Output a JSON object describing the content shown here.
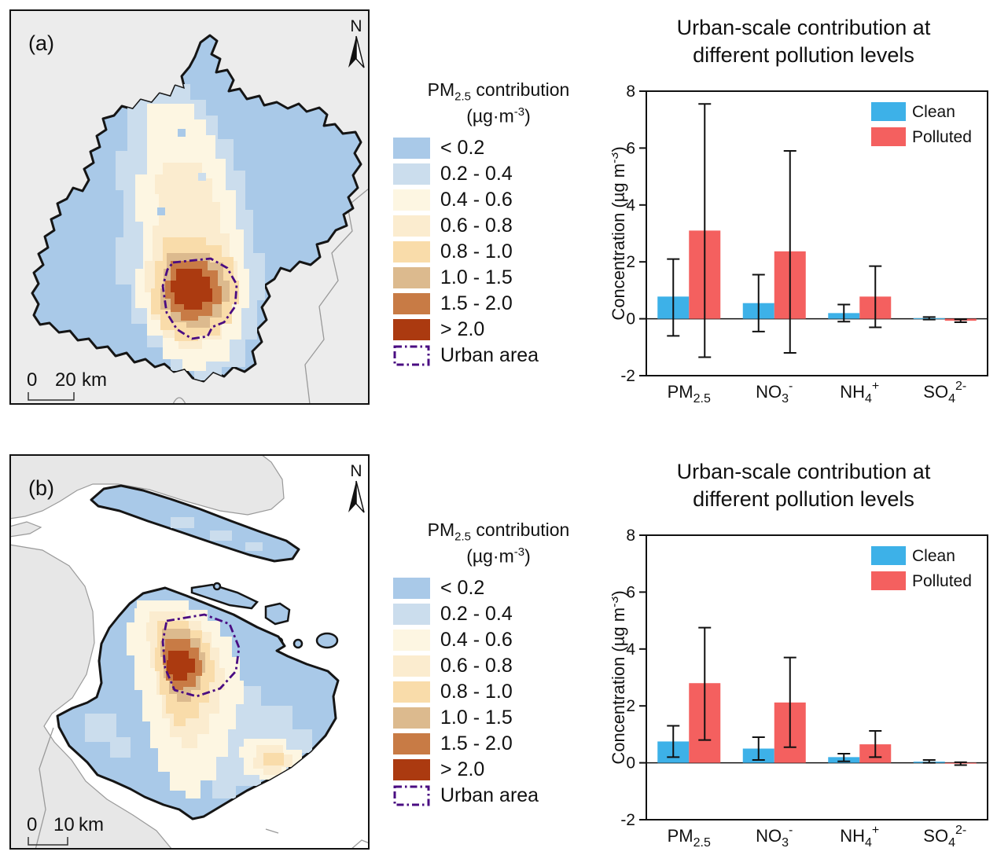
{
  "colors": {
    "clean": "#3db1e8",
    "polluted": "#f4605f",
    "axis": "#111111",
    "map_background": "#ececec",
    "water": "#ffffff",
    "outside_land": "#e7e7e7",
    "boundary": "#151515",
    "neighbor_line": "#9a9a9a"
  },
  "maps": [
    {
      "label": "(a)",
      "north": "N",
      "scale_zero": "0",
      "scale_value": "20",
      "scale_unit": "km"
    },
    {
      "label": "(b)",
      "north": "N",
      "scale_zero": "0",
      "scale_value": "10",
      "scale_unit": "km"
    }
  ],
  "map_legend": {
    "title_base": "PM",
    "title_sub": "2.5",
    "title_rest": " contribution",
    "unit_pre": "(µg·m",
    "unit_sup": "-3",
    "unit_post": ")",
    "bins": [
      {
        "label": "< 0.2",
        "color": "#a9c9e8"
      },
      {
        "label": "0.2 - 0.4",
        "color": "#cbdded"
      },
      {
        "label": "0.4 - 0.6",
        "color": "#fdf6e2"
      },
      {
        "label": "0.6 - 0.8",
        "color": "#fbeccf"
      },
      {
        "label": "0.8 - 1.0",
        "color": "#f9dcaa"
      },
      {
        "label": "1.0 - 1.5",
        "color": "#dcba8e"
      },
      {
        "label": "1.5 - 2.0",
        "color": "#c87b45"
      },
      {
        "label": "> 2.0",
        "color": "#ab3a10"
      }
    ],
    "urban_label": "Urban area",
    "urban_color": "#4a0c82"
  },
  "chart_data": [
    {
      "type": "bar",
      "panel": "a",
      "title_line1": "Urban-scale contribution at",
      "title_line2": "different pollution levels",
      "ylabel_pre": "Concentration (µg m",
      "ylabel_sup": "-3",
      "ylabel_post": ")",
      "ylim": [
        -2,
        8
      ],
      "yticks": [
        -2,
        0,
        2,
        4,
        6,
        8
      ],
      "grid": false,
      "legend_position": "top-right",
      "categories": [
        "PM2.5",
        "NO3-",
        "NH4+",
        "SO42-"
      ],
      "categories_rich": [
        {
          "base": "PM",
          "sub": "2.5",
          "sup": ""
        },
        {
          "base": "NO",
          "sub": "3",
          "sup": "-"
        },
        {
          "base": "NH",
          "sub": "4",
          "sup": "+"
        },
        {
          "base": "SO",
          "sub": "4",
          "sup": "2-"
        }
      ],
      "series": [
        {
          "name": "Clean",
          "color": "#3db1e8",
          "values": [
            0.78,
            0.55,
            0.2,
            0.02
          ],
          "err_low": [
            -0.6,
            -0.45,
            -0.1,
            -0.03
          ],
          "err_high": [
            2.1,
            1.55,
            0.5,
            0.06
          ]
        },
        {
          "name": "Polluted",
          "color": "#f4605f",
          "values": [
            3.1,
            2.37,
            0.78,
            -0.07
          ],
          "err_low": [
            -1.35,
            -1.2,
            -0.3,
            -0.12
          ],
          "err_high": [
            7.55,
            5.9,
            1.85,
            -0.02
          ]
        }
      ]
    },
    {
      "type": "bar",
      "panel": "b",
      "title_line1": "Urban-scale contribution at",
      "title_line2": "different pollution levels",
      "ylabel_pre": "Concentration (µg m",
      "ylabel_sup": "-3",
      "ylabel_post": ")",
      "ylim": [
        -2,
        8
      ],
      "yticks": [
        -2,
        0,
        2,
        4,
        6,
        8
      ],
      "grid": false,
      "legend_position": "top-right",
      "categories": [
        "PM2.5",
        "NO3-",
        "NH4+",
        "SO42-"
      ],
      "categories_rich": [
        {
          "base": "PM",
          "sub": "2.5",
          "sup": ""
        },
        {
          "base": "NO",
          "sub": "3",
          "sup": "-"
        },
        {
          "base": "NH",
          "sub": "4",
          "sup": "+"
        },
        {
          "base": "SO",
          "sub": "4",
          "sup": "2-"
        }
      ],
      "series": [
        {
          "name": "Clean",
          "color": "#3db1e8",
          "values": [
            0.75,
            0.5,
            0.2,
            0.04
          ],
          "err_low": [
            0.2,
            0.1,
            0.05,
            0.0
          ],
          "err_high": [
            1.3,
            0.9,
            0.32,
            0.1
          ]
        },
        {
          "name": "Polluted",
          "color": "#f4605f",
          "values": [
            2.8,
            2.12,
            0.65,
            -0.03
          ],
          "err_low": [
            0.8,
            0.55,
            0.2,
            -0.08
          ],
          "err_high": [
            4.75,
            3.7,
            1.12,
            0.02
          ]
        }
      ]
    }
  ]
}
